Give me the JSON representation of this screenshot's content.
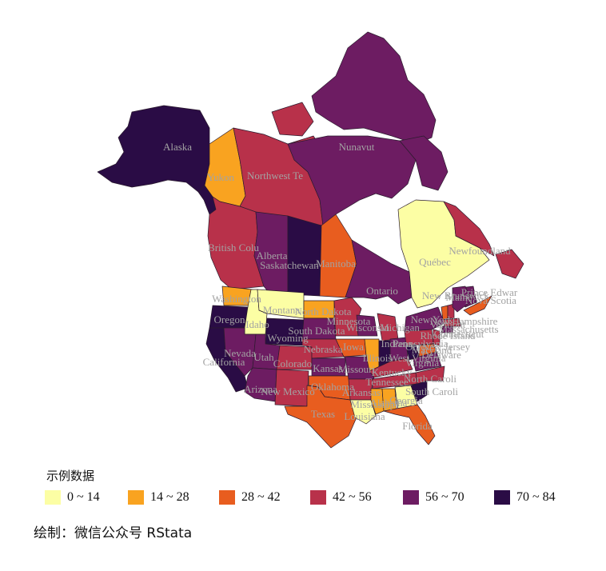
{
  "legend": {
    "title": "示例数据",
    "items": [
      {
        "label": "0 ~ 14",
        "color": "#fcfea4"
      },
      {
        "label": "14 ~ 28",
        "color": "#f9a320"
      },
      {
        "label": "28 ~ 42",
        "color": "#e85d1f"
      },
      {
        "label": "42 ~ 56",
        "color": "#b8314a"
      },
      {
        "label": "56 ~ 70",
        "color": "#6d1c62"
      },
      {
        "label": "70 ~ 84",
        "color": "#2a0c45"
      }
    ]
  },
  "caption": "绘制：微信公众号 RStata",
  "regions": [
    {
      "name": "Alaska",
      "bin": 5
    },
    {
      "name": "Yukon",
      "bin": 1
    },
    {
      "name": "Northwest Te",
      "bin": 3
    },
    {
      "name": "Nunavut",
      "bin": 4
    },
    {
      "name": "British Colu",
      "bin": 3
    },
    {
      "name": "Alberta",
      "bin": 4
    },
    {
      "name": "Saskatchewan",
      "bin": 5
    },
    {
      "name": "Manitoba",
      "bin": 2
    },
    {
      "name": "Ontario",
      "bin": 4
    },
    {
      "name": "Québec",
      "bin": 0
    },
    {
      "name": "Newfoundland",
      "bin": 3
    },
    {
      "name": "New Brunswick",
      "bin": 4
    },
    {
      "name": "Nova Scotia",
      "bin": 2
    },
    {
      "name": "Washington",
      "bin": 1
    },
    {
      "name": "Oregon",
      "bin": 5
    },
    {
      "name": "California",
      "bin": 5
    },
    {
      "name": "Idaho",
      "bin": 0
    },
    {
      "name": "Nevada",
      "bin": 4
    },
    {
      "name": "Montana",
      "bin": 0
    },
    {
      "name": "Wyoming",
      "bin": 5
    },
    {
      "name": "Utah",
      "bin": 4
    },
    {
      "name": "Arizona",
      "bin": 4
    },
    {
      "name": "Colorado",
      "bin": 3
    },
    {
      "name": "New Mexico",
      "bin": 3
    },
    {
      "name": "North Dakota",
      "bin": 1
    },
    {
      "name": "South Dakota",
      "bin": 4
    },
    {
      "name": "Nebraska",
      "bin": 3
    },
    {
      "name": "Kansas",
      "bin": 4
    },
    {
      "name": "Oklahoma",
      "bin": 2
    },
    {
      "name": "Texas",
      "bin": 2
    },
    {
      "name": "Minnesota",
      "bin": 3
    },
    {
      "name": "Iowa",
      "bin": 2
    },
    {
      "name": "Missouri",
      "bin": 4
    },
    {
      "name": "Arkansas",
      "bin": 3
    },
    {
      "name": "Louisiana",
      "bin": 0
    },
    {
      "name": "Wisconsin",
      "bin": 4
    },
    {
      "name": "Illinois",
      "bin": 1
    },
    {
      "name": "Michigan",
      "bin": 3
    },
    {
      "name": "Indiana",
      "bin": 5
    },
    {
      "name": "Ohio",
      "bin": 4
    },
    {
      "name": "Kentucky",
      "bin": 3
    },
    {
      "name": "Tennessee",
      "bin": 3
    },
    {
      "name": "Mississippi",
      "bin": 1
    },
    {
      "name": "Alabama",
      "bin": 1
    },
    {
      "name": "Georgia",
      "bin": 0
    },
    {
      "name": "Florida",
      "bin": 2
    },
    {
      "name": "South Caroli",
      "bin": 5
    },
    {
      "name": "North Caroli",
      "bin": 3
    },
    {
      "name": "Virginia",
      "bin": 4
    },
    {
      "name": "West Virginia",
      "bin": 5
    },
    {
      "name": "Pennsylvania",
      "bin": 3
    },
    {
      "name": "New York",
      "bin": 4
    },
    {
      "name": "New Jersey",
      "bin": 3
    },
    {
      "name": "Maryland",
      "bin": 2
    },
    {
      "name": "Delaware",
      "bin": 4
    },
    {
      "name": "Connecticut",
      "bin": 4
    },
    {
      "name": "Massachusetts",
      "bin": 3
    },
    {
      "name": "Vermont",
      "bin": 2
    },
    {
      "name": "New Hampshire",
      "bin": 3
    },
    {
      "name": "Maine",
      "bin": 4
    },
    {
      "name": "Rhode Island",
      "bin": 3
    }
  ],
  "map_labels": [
    "Alaska",
    "Yukon",
    "Northwest Te",
    "Nunavut",
    "British Colu",
    "Alberta",
    "Saskatchewan",
    "Manitoba",
    "Ontario",
    "Québec",
    "Newfoundland",
    "New Brunswick",
    "Nova Scotia",
    "Prince Edwar",
    "Washington",
    "Oregon",
    "Idaho",
    "Montana",
    "North Dakota",
    "South Dakota",
    "Minnesota",
    "Wisconsin",
    "Michigan",
    "New York",
    "Vermont",
    "New Hampshire",
    "Massachusetts",
    "Connecticut",
    "Rhode Island",
    "Wyoming",
    "Nebraska",
    "Iowa",
    "Illinois",
    "Indiana",
    "Ohio",
    "Pennsylvania",
    "New Jersey",
    "Delaware",
    "Maryland",
    "West Virginia",
    "Virginia",
    "Nevada",
    "Utah",
    "Colorado",
    "California",
    "Kansas",
    "Missouri",
    "Kentucky",
    "Tennessee",
    "North Caroli",
    "South Caroli",
    "Arizona",
    "New Mexico",
    "Oklahoma",
    "Arkansas",
    "Mississippi",
    "Alabama",
    "Georgia",
    "Louisiana",
    "Texas",
    "Florida",
    "Maine"
  ]
}
